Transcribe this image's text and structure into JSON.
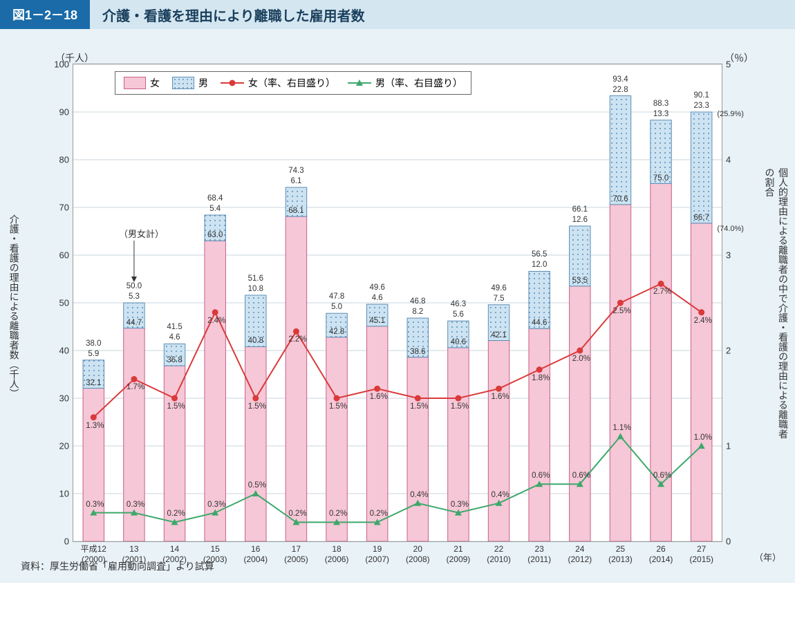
{
  "header": {
    "tag": "図1－2－18",
    "title": "介護・看護を理由により離職した雇用者数"
  },
  "source": "資料：厚生労働省「雇用動向調査」より試算",
  "units": {
    "left": "（千人）",
    "right": "（％）",
    "x": "（年）"
  },
  "ylabels": {
    "left": "介護・看護の理由による離職者数（千人）",
    "right": "個人的理由による離職者の中で介護・看護の理由による離職者の割合"
  },
  "annotation": {
    "text": "（男女計）",
    "arrow_from_cat_index": 1
  },
  "legend": [
    {
      "key": "female_bar",
      "label": "女",
      "type": "box",
      "fill": "#f6c7d6",
      "border": "#c75f8a"
    },
    {
      "key": "male_bar",
      "label": "男",
      "type": "box",
      "fill": "#cde3f2",
      "border": "#5b8db5",
      "dotted": true
    },
    {
      "key": "female_rate",
      "label": "女（率、右目盛り）",
      "type": "line",
      "color": "#d93a3a",
      "marker": "circle"
    },
    {
      "key": "male_rate",
      "label": "男（率、右目盛り）",
      "type": "line",
      "color": "#3da86b",
      "marker": "triangle"
    }
  ],
  "chart": {
    "type": "bar+line",
    "left_axis": {
      "min": 0,
      "max": 100,
      "step": 10
    },
    "right_axis": {
      "min": 0,
      "max": 5,
      "step": 1
    },
    "colors": {
      "grid": "#c9d6de",
      "female_bar_fill": "#f6c7d6",
      "female_bar_stroke": "#c75f8a",
      "male_bar_fill": "#cde3f2",
      "male_bar_stroke": "#5b8db5",
      "female_line": "#d93a3a",
      "male_line": "#3da86b"
    },
    "bar_width": 0.52,
    "categories": [
      {
        "era": "平成12",
        "year": "(2000)",
        "female": 32.1,
        "male": 5.9,
        "total": 38.0,
        "female_rate": 1.3,
        "male_rate": 0.3
      },
      {
        "era": "13",
        "year": "(2001)",
        "female": 44.7,
        "male": 5.3,
        "total": 50.0,
        "female_rate": 1.7,
        "male_rate": 0.3
      },
      {
        "era": "14",
        "year": "(2002)",
        "female": 36.8,
        "male": 4.6,
        "total": 41.5,
        "female_rate": 1.5,
        "male_rate": 0.2
      },
      {
        "era": "15",
        "year": "(2003)",
        "female": 63.0,
        "male": 5.4,
        "total": 68.4,
        "female_rate": 2.4,
        "male_rate": 0.3
      },
      {
        "era": "16",
        "year": "(2004)",
        "female": 40.8,
        "male": 10.8,
        "total": 51.6,
        "female_rate": 1.5,
        "male_rate": 0.5
      },
      {
        "era": "17",
        "year": "(2005)",
        "female": 68.1,
        "male": 6.1,
        "total": 74.3,
        "female_rate": 2.2,
        "male_rate": 0.2
      },
      {
        "era": "18",
        "year": "(2006)",
        "female": 42.8,
        "male": 5.0,
        "total": 47.8,
        "female_rate": 1.5,
        "male_rate": 0.2
      },
      {
        "era": "19",
        "year": "(2007)",
        "female": 45.1,
        "male": 4.6,
        "total": 49.6,
        "female_rate": 1.6,
        "male_rate": 0.2
      },
      {
        "era": "20",
        "year": "(2008)",
        "female": 38.6,
        "male": 8.2,
        "total": 46.8,
        "female_rate": 1.5,
        "male_rate": 0.4
      },
      {
        "era": "21",
        "year": "(2009)",
        "female": 40.6,
        "male": 5.6,
        "total": 46.3,
        "female_rate": 1.5,
        "male_rate": 0.3
      },
      {
        "era": "22",
        "year": "(2010)",
        "female": 42.1,
        "male": 7.5,
        "total": 49.6,
        "female_rate": 1.6,
        "male_rate": 0.4
      },
      {
        "era": "23",
        "year": "(2011)",
        "female": 44.6,
        "male": 12.0,
        "total": 56.5,
        "female_rate": 1.8,
        "male_rate": 0.6
      },
      {
        "era": "24",
        "year": "(2012)",
        "female": 53.5,
        "male": 12.6,
        "total": 66.1,
        "female_rate": 2.0,
        "male_rate": 0.6
      },
      {
        "era": "25",
        "year": "(2013)",
        "female": 70.6,
        "male": 22.8,
        "total": 93.4,
        "female_rate": 2.5,
        "male_rate": 1.1
      },
      {
        "era": "26",
        "year": "(2014)",
        "female": 75.0,
        "male": 13.3,
        "total": 88.3,
        "female_rate": 2.7,
        "male_rate": 0.6
      },
      {
        "era": "27",
        "year": "(2015)",
        "female": 66.7,
        "male": 23.3,
        "total": 90.1,
        "female_rate": 2.4,
        "male_rate": 1.0,
        "female_pct_note": "(74.0%)",
        "male_pct_note": "(25.9%)"
      }
    ]
  }
}
